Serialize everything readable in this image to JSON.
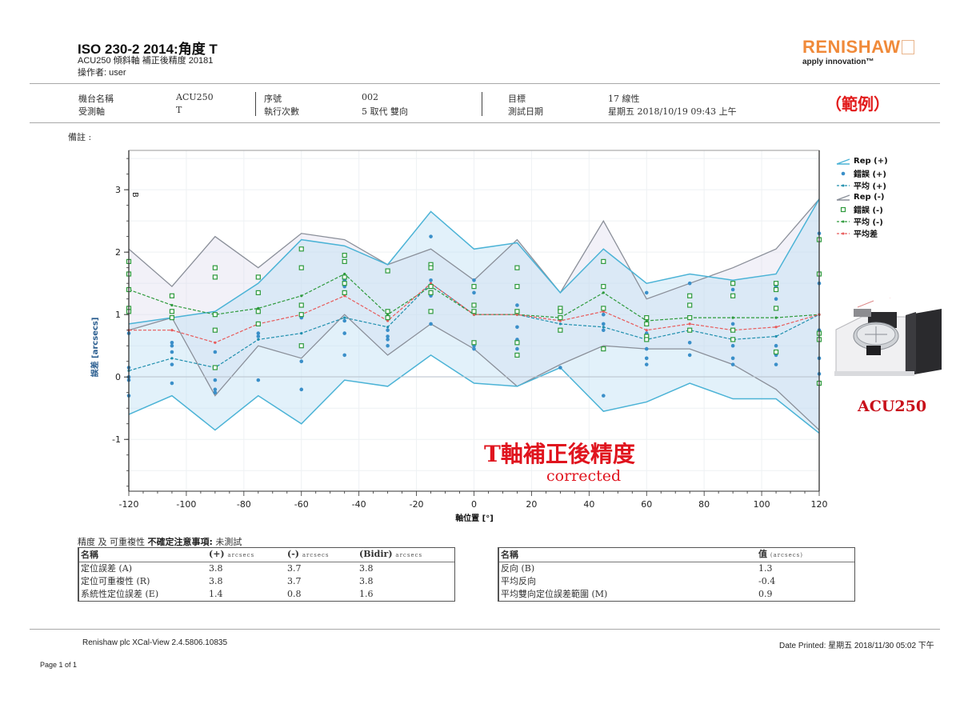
{
  "header": {
    "title": "ISO 230-2 2014:角度 T",
    "subtitle": "ACU250 傾斜軸 補正後精度 20181",
    "operator": "操作者: user",
    "brand": "RENISHAW",
    "tagline": "apply innovation™"
  },
  "info": {
    "machine_name_label": "機台名稱",
    "machine_name_value": "ACU250",
    "axis_label": "受測軸",
    "axis_value": "T",
    "serial_label": "序號",
    "serial_value": "002",
    "runs_label": "執行次數",
    "runs_value": "5 取代 雙向",
    "target_label": "目標",
    "target_value": "17 線性",
    "date_label": "測試日期",
    "date_value": "星期五 2018/10/19 09:43 上午",
    "sample_stamp": "（範例）",
    "remarks_label": "備註 :"
  },
  "legend": [
    {
      "label": "Rep (+)",
      "icon": "band-blue-icon"
    },
    {
      "label": "錯誤 (+)",
      "icon": "dot-blue-icon"
    },
    {
      "label": "平均 (+)",
      "icon": "dashed-blue-icon"
    },
    {
      "label": "Rep (-)",
      "icon": "band-gray-icon"
    },
    {
      "label": "錯誤 (-)",
      "icon": "square-green-icon"
    },
    {
      "label": "平均 (-)",
      "icon": "dashed-green-icon"
    },
    {
      "label": "平均差",
      "icon": "dashed-red-icon"
    }
  ],
  "overlay": {
    "title": "T軸補正後精度",
    "subtitle": "corrected",
    "machine_label": "ACU250"
  },
  "chart_data": {
    "type": "line",
    "title": "",
    "xlabel": "軸位置 [°]",
    "ylabel": "誤差 [arcsecs]",
    "xlim": [
      -120,
      120
    ],
    "ylim": [
      -1.83,
      3.63
    ],
    "xticks": [
      -120,
      -100,
      -80,
      -60,
      -40,
      -20,
      0,
      20,
      40,
      60,
      80,
      100,
      120
    ],
    "yticks": [
      -1,
      0,
      1,
      2,
      3
    ],
    "grid": true,
    "legend_position": "right",
    "annotation": "B",
    "x": [
      -120,
      -105,
      -90,
      -75,
      -60,
      -45,
      -30,
      -15,
      0,
      15,
      30,
      45,
      60,
      75,
      90,
      105,
      120
    ],
    "series": [
      {
        "name": "Rep (+) upper",
        "values": [
          0.85,
          0.95,
          1.05,
          1.5,
          2.2,
          2.1,
          1.8,
          2.65,
          2.05,
          2.15,
          1.35,
          2.05,
          1.5,
          1.65,
          1.55,
          1.65,
          2.85
        ]
      },
      {
        "name": "Rep (+) lower",
        "values": [
          -0.6,
          -0.3,
          -0.85,
          -0.3,
          -0.75,
          -0.05,
          -0.15,
          0.35,
          -0.1,
          -0.15,
          0.15,
          -0.55,
          -0.4,
          -0.1,
          -0.35,
          -0.35,
          -0.9
        ]
      },
      {
        "name": "Rep (-) upper",
        "values": [
          2.05,
          1.45,
          2.25,
          1.75,
          2.3,
          2.2,
          1.8,
          2.05,
          1.55,
          2.2,
          1.35,
          2.5,
          1.25,
          1.5,
          1.75,
          2.05,
          2.85
        ]
      },
      {
        "name": "Rep (-) lower",
        "values": [
          0.75,
          0.95,
          -0.3,
          0.5,
          0.3,
          1.0,
          0.35,
          0.85,
          0.45,
          -0.15,
          0.2,
          0.5,
          0.45,
          0.45,
          0.2,
          -0.2,
          -0.85
        ]
      },
      {
        "name": "平均 (+)",
        "values": [
          0.1,
          0.3,
          0.15,
          0.6,
          0.7,
          0.95,
          0.8,
          1.5,
          1.0,
          1.0,
          0.85,
          0.8,
          0.6,
          0.75,
          0.6,
          0.65,
          1.0
        ]
      },
      {
        "name": "平均 (-)",
        "values": [
          1.4,
          1.15,
          1.0,
          1.1,
          1.3,
          1.65,
          1.0,
          1.45,
          1.0,
          1.0,
          0.95,
          1.35,
          0.9,
          0.95,
          0.95,
          0.95,
          1.0
        ]
      },
      {
        "name": "平均差",
        "values": [
          0.75,
          0.75,
          0.55,
          0.85,
          1.0,
          1.3,
          0.9,
          1.5,
          1.0,
          1.0,
          0.9,
          1.05,
          0.75,
          0.85,
          0.75,
          0.8,
          1.0
        ]
      }
    ],
    "scatter": {
      "error_plus": [
        [
          -120,
          0.7
        ],
        [
          -120,
          0.15
        ],
        [
          -120,
          0.0
        ],
        [
          -120,
          -0.05
        ],
        [
          -120,
          -0.3
        ],
        [
          -105,
          0.55
        ],
        [
          -105,
          0.5
        ],
        [
          -105,
          0.4
        ],
        [
          -105,
          0.2
        ],
        [
          -105,
          -0.1
        ],
        [
          -90,
          0.75
        ],
        [
          -90,
          0.4
        ],
        [
          -90,
          -0.05
        ],
        [
          -90,
          -0.2
        ],
        [
          -90,
          -0.25
        ],
        [
          -75,
          1.05
        ],
        [
          -75,
          0.7
        ],
        [
          -75,
          0.65
        ],
        [
          -75,
          -0.05
        ],
        [
          -60,
          1.75
        ],
        [
          -60,
          1.0
        ],
        [
          -60,
          0.95
        ],
        [
          -60,
          0.25
        ],
        [
          -60,
          -0.2
        ],
        [
          -45,
          1.55
        ],
        [
          -45,
          1.45
        ],
        [
          -45,
          0.9
        ],
        [
          -45,
          0.7
        ],
        [
          -45,
          0.35
        ],
        [
          -30,
          0.75
        ],
        [
          -30,
          0.65
        ],
        [
          -30,
          0.6
        ],
        [
          -30,
          0.5
        ],
        [
          -15,
          2.25
        ],
        [
          -15,
          1.8
        ],
        [
          -15,
          1.55
        ],
        [
          -15,
          1.3
        ],
        [
          -15,
          0.85
        ],
        [
          0,
          1.55
        ],
        [
          0,
          1.35
        ],
        [
          0,
          0.5
        ],
        [
          0,
          0.45
        ],
        [
          15,
          1.75
        ],
        [
          15,
          1.15
        ],
        [
          15,
          0.8
        ],
        [
          15,
          0.6
        ],
        [
          15,
          0.45
        ],
        [
          30,
          0.15
        ],
        [
          45,
          1.1
        ],
        [
          45,
          1.0
        ],
        [
          45,
          0.85
        ],
        [
          45,
          0.75
        ],
        [
          45,
          -0.3
        ],
        [
          60,
          1.35
        ],
        [
          60,
          0.7
        ],
        [
          60,
          0.45
        ],
        [
          60,
          0.3
        ],
        [
          60,
          0.2
        ],
        [
          75,
          1.5
        ],
        [
          75,
          0.75
        ],
        [
          75,
          0.55
        ],
        [
          75,
          0.35
        ],
        [
          90,
          1.4
        ],
        [
          90,
          0.85
        ],
        [
          90,
          0.5
        ],
        [
          90,
          0.3
        ],
        [
          90,
          0.2
        ],
        [
          105,
          1.45
        ],
        [
          105,
          1.25
        ],
        [
          105,
          0.5
        ],
        [
          105,
          0.35
        ],
        [
          105,
          0.2
        ],
        [
          120,
          2.3
        ],
        [
          120,
          1.5
        ],
        [
          120,
          0.75
        ],
        [
          120,
          0.3
        ],
        [
          120,
          0.05
        ]
      ],
      "error_minus": [
        [
          -120,
          1.85
        ],
        [
          -120,
          1.65
        ],
        [
          -120,
          1.4
        ],
        [
          -120,
          1.1
        ],
        [
          -120,
          1.05
        ],
        [
          -105,
          1.3
        ],
        [
          -105,
          1.05
        ],
        [
          -105,
          0.95
        ],
        [
          -90,
          1.75
        ],
        [
          -90,
          1.6
        ],
        [
          -90,
          1.0
        ],
        [
          -90,
          0.75
        ],
        [
          -90,
          0.15
        ],
        [
          -75,
          1.6
        ],
        [
          -75,
          1.35
        ],
        [
          -75,
          1.05
        ],
        [
          -75,
          0.85
        ],
        [
          -60,
          2.05
        ],
        [
          -60,
          1.75
        ],
        [
          -60,
          1.15
        ],
        [
          -60,
          1.0
        ],
        [
          -60,
          0.5
        ],
        [
          -45,
          1.95
        ],
        [
          -45,
          1.85
        ],
        [
          -45,
          1.6
        ],
        [
          -45,
          1.5
        ],
        [
          -45,
          1.35
        ],
        [
          -30,
          1.7
        ],
        [
          -30,
          1.05
        ],
        [
          -30,
          0.95
        ],
        [
          -15,
          1.8
        ],
        [
          -15,
          1.75
        ],
        [
          -15,
          1.45
        ],
        [
          -15,
          1.35
        ],
        [
          -15,
          1.05
        ],
        [
          0,
          1.45
        ],
        [
          0,
          1.15
        ],
        [
          0,
          1.05
        ],
        [
          0,
          0.55
        ],
        [
          15,
          1.75
        ],
        [
          15,
          1.45
        ],
        [
          15,
          1.05
        ],
        [
          15,
          0.55
        ],
        [
          15,
          0.35
        ],
        [
          30,
          1.1
        ],
        [
          30,
          1.05
        ],
        [
          30,
          0.95
        ],
        [
          30,
          0.75
        ],
        [
          45,
          1.85
        ],
        [
          45,
          1.45
        ],
        [
          45,
          1.1
        ],
        [
          45,
          0.45
        ],
        [
          60,
          0.95
        ],
        [
          60,
          0.85
        ],
        [
          60,
          0.65
        ],
        [
          60,
          0.6
        ],
        [
          75,
          1.3
        ],
        [
          75,
          1.15
        ],
        [
          75,
          0.95
        ],
        [
          75,
          0.75
        ],
        [
          90,
          1.5
        ],
        [
          90,
          1.3
        ],
        [
          90,
          0.75
        ],
        [
          90,
          0.6
        ],
        [
          105,
          1.5
        ],
        [
          105,
          1.4
        ],
        [
          105,
          1.1
        ],
        [
          105,
          0.4
        ],
        [
          120,
          2.2
        ],
        [
          120,
          1.65
        ],
        [
          120,
          0.7
        ],
        [
          120,
          0.6
        ],
        [
          120,
          -0.1
        ]
      ]
    }
  },
  "summary": {
    "caption_normal": "精度 及 可重複性 ",
    "caption_bold": "不確定注意事項:",
    "caption_value": " 未測試",
    "table1": {
      "headers": [
        "名稱",
        "(+)",
        "(-)",
        "(Bidir)"
      ],
      "unit": "arcsecs",
      "rows": [
        [
          "定位誤差 (A)",
          "3.8",
          "3.7",
          "3.8"
        ],
        [
          "定位可重複性 (R)",
          "3.8",
          "3.7",
          "3.8"
        ],
        [
          "系統性定位誤差 (E)",
          "1.4",
          "0.8",
          "1.6"
        ]
      ]
    },
    "table2": {
      "headers": [
        "名稱",
        "值"
      ],
      "unit": "(arcsecs)",
      "rows": [
        [
          "反向 (B)",
          "1.3"
        ],
        [
          "平均反向",
          "-0.4"
        ],
        [
          "平均雙向定位誤差範圍 (M)",
          "0.9"
        ]
      ]
    }
  },
  "footer": {
    "software": "Renishaw plc XCal-View 2.4.5806.10835",
    "printed": "Date Printed: 星期五 2018/11/30 05:02 下午",
    "page": "Page 1 of 1"
  },
  "colors": {
    "brand": "#f08a3a",
    "rep_plus": "#4bb3d6",
    "rep_minus": "#8a8f99",
    "mean_plus": "#1f8fae",
    "mean_minus": "#2e9a3c",
    "mean_diff": "#e85a5a",
    "stamp_red": "#e0141e"
  }
}
